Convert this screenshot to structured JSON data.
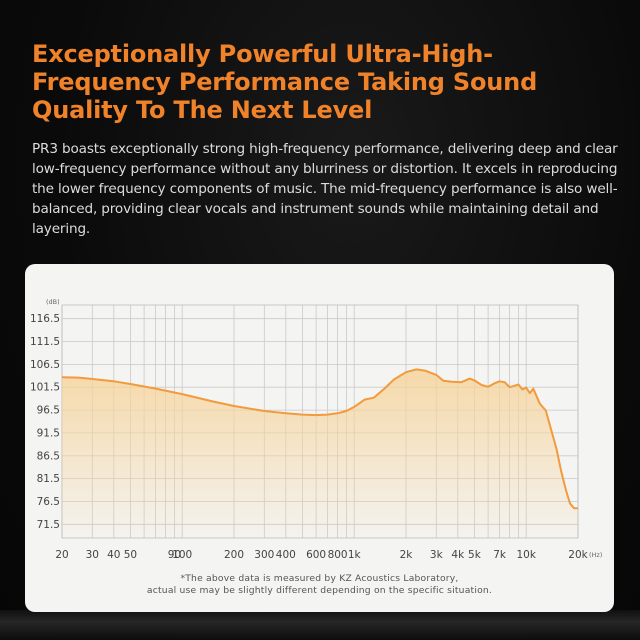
{
  "headline": "Exceptionally Powerful Ultra-High-Frequency Performance Taking Sound Quality To The Next Level",
  "body": "PR3 boasts exceptionally strong high-frequency performance, delivering deep and clear low-frequency performance without any blurriness or distortion. It excels in reproducing the lower frequency components of music. The mid-frequency performance is also well-balanced, providing clear vocals and instrument sounds while maintaining detail and layering.",
  "footnote_line1": "*The above data is measured by KZ Acoustics Laboratory,",
  "footnote_line2": "actual use may be slightly different depending on the specific situation.",
  "colors": {
    "accent": "#f0832a",
    "curve": "#f29a3c",
    "fill": "#f6d49c",
    "panel": "#f4f4f3",
    "background": "#0c0c0c"
  },
  "chart_data": {
    "type": "area",
    "xscale": "log",
    "xlim": [
      20,
      20000
    ],
    "ylim": [
      68.5,
      119.5
    ],
    "grid": true,
    "ylabel": "(dB)",
    "xunit": "(Hz)",
    "yticks": [
      116.5,
      111.5,
      106.5,
      101.5,
      96.5,
      91.5,
      86.5,
      81.5,
      76.5,
      71.5
    ],
    "xtick_labels": [
      {
        "x": 20,
        "label": "20"
      },
      {
        "x": 30,
        "label": "30"
      },
      {
        "x": 40,
        "label": "40"
      },
      {
        "x": 50,
        "label": "50"
      },
      {
        "x": 90,
        "label": "90"
      },
      {
        "x": 100,
        "label": "100"
      },
      {
        "x": 200,
        "label": "200"
      },
      {
        "x": 300,
        "label": "300"
      },
      {
        "x": 400,
        "label": "400"
      },
      {
        "x": 600,
        "label": "600"
      },
      {
        "x": 800,
        "label": "800"
      },
      {
        "x": 1000,
        "label": "1k"
      },
      {
        "x": 2000,
        "label": "2k"
      },
      {
        "x": 3000,
        "label": "3k"
      },
      {
        "x": 4000,
        "label": "4k"
      },
      {
        "x": 5000,
        "label": "5k"
      },
      {
        "x": 7000,
        "label": "7k"
      },
      {
        "x": 10000,
        "label": "10k"
      },
      {
        "x": 20000,
        "label": "20k"
      }
    ],
    "series": [
      {
        "x": [
          20,
          25,
          30,
          40,
          50,
          70,
          100,
          150,
          200,
          300,
          400,
          500,
          600,
          700,
          800,
          900,
          1000,
          1150,
          1300,
          1500,
          1700,
          2000,
          2300,
          2600,
          3000,
          3300,
          3700,
          4200,
          4700,
          5000,
          5500,
          6000,
          6500,
          7000,
          7500,
          8000,
          8500,
          9000,
          9500,
          10000,
          10500,
          11000,
          12000,
          13000,
          14000,
          15000,
          16000,
          17000,
          18000,
          19000,
          20000
        ],
        "y": [
          103.7,
          103.6,
          103.3,
          102.8,
          102.2,
          101.2,
          100.0,
          98.4,
          97.4,
          96.3,
          95.8,
          95.5,
          95.4,
          95.5,
          95.8,
          96.3,
          97.2,
          98.8,
          99.2,
          101.2,
          103.2,
          104.8,
          105.4,
          105.1,
          104.2,
          102.9,
          102.7,
          102.6,
          103.4,
          103.0,
          102.0,
          101.6,
          102.3,
          102.8,
          102.6,
          101.5,
          101.8,
          102.1,
          101.0,
          101.4,
          100.2,
          101.2,
          97.9,
          96.4,
          92.0,
          88.0,
          83.0,
          79.0,
          76.0,
          75.0,
          75.0
        ]
      }
    ]
  }
}
